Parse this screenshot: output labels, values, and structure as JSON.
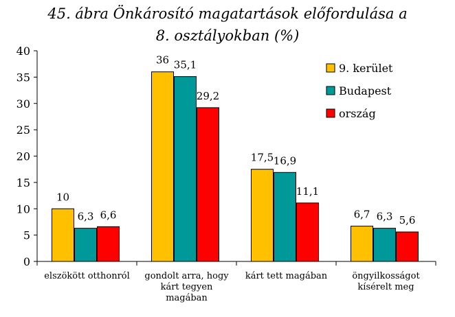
{
  "chart_data": {
    "type": "bar",
    "title_lines": [
      "45. ábra Önkárosító magatartások előfordulása a",
      "8. osztályokban (%)"
    ],
    "categories": [
      [
        "elszökött otthonról"
      ],
      [
        "gondolt arra, hogy",
        "kárt tegyen",
        "magában"
      ],
      [
        "kárt tett magában"
      ],
      [
        "öngyilkosságot",
        "kísérelt meg"
      ]
    ],
    "series": [
      {
        "name": "9. kerület",
        "color": "#FFC000",
        "values": [
          10,
          36,
          17.5,
          6.7
        ],
        "labels": [
          "10",
          "36",
          "17,5",
          "6,7"
        ]
      },
      {
        "name": "Budapest",
        "color": "#009999",
        "values": [
          6.3,
          35.1,
          16.9,
          6.3
        ],
        "labels": [
          "6,3",
          "35,1",
          "16,9",
          "6,3"
        ]
      },
      {
        "name": "ország",
        "color": "#FF0000",
        "values": [
          6.6,
          29.2,
          11.1,
          5.6
        ],
        "labels": [
          "6,6",
          "29,2",
          "11,1",
          "5,6"
        ]
      }
    ],
    "ylim": [
      0,
      40
    ],
    "yticks": [
      "0",
      "5",
      "10",
      "15",
      "20",
      "25",
      "30",
      "35",
      "40"
    ],
    "legend_position": "top-right",
    "grid": false
  }
}
